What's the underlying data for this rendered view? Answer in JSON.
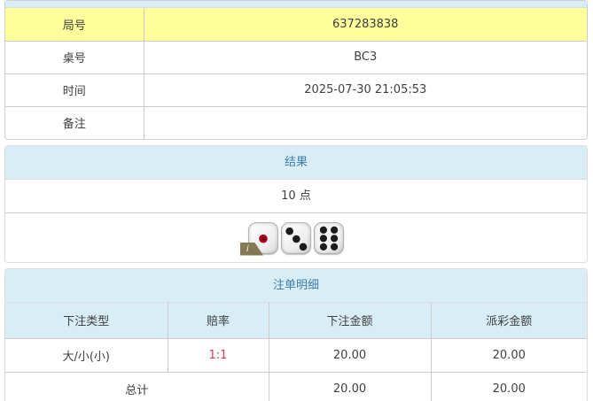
{
  "colors": {
    "panel_header_bg": "#d9edf7",
    "panel_header_text": "#3c7fa8",
    "highlight_row_bg": "#ffff9c",
    "border_color": "#cccccc",
    "panel_border": "#dddddd",
    "text_color": "#404040",
    "odds_red": "#d6414d"
  },
  "game_info": {
    "rows": [
      {
        "label": "局号",
        "value": "637283838",
        "highlight": true
      },
      {
        "label": "桌号",
        "value": "BC3",
        "highlight": false
      },
      {
        "label": "时间",
        "value": "2025-07-30 21:05:53",
        "highlight": false
      },
      {
        "label": "备注",
        "value": "",
        "highlight": false
      }
    ]
  },
  "result": {
    "header": "结果",
    "points": "10 点",
    "dice_faces": [
      1,
      3,
      6
    ],
    "dice_pip_colors": [
      "#b00020",
      "#1c1c1c",
      "#1c1c1c"
    ],
    "info_badge_label": "i"
  },
  "bet_details": {
    "header": "注单明细",
    "columns": [
      "下注类型",
      "赔率",
      "下注金额",
      "派彩金额"
    ],
    "rows": [
      {
        "type": "大/小(小)",
        "odds": "1:1",
        "bet_amount": "20.00",
        "payout_amount": "20.00"
      }
    ],
    "total": {
      "label": "总计",
      "bet_amount": "20.00",
      "payout_amount": "20.00"
    }
  }
}
